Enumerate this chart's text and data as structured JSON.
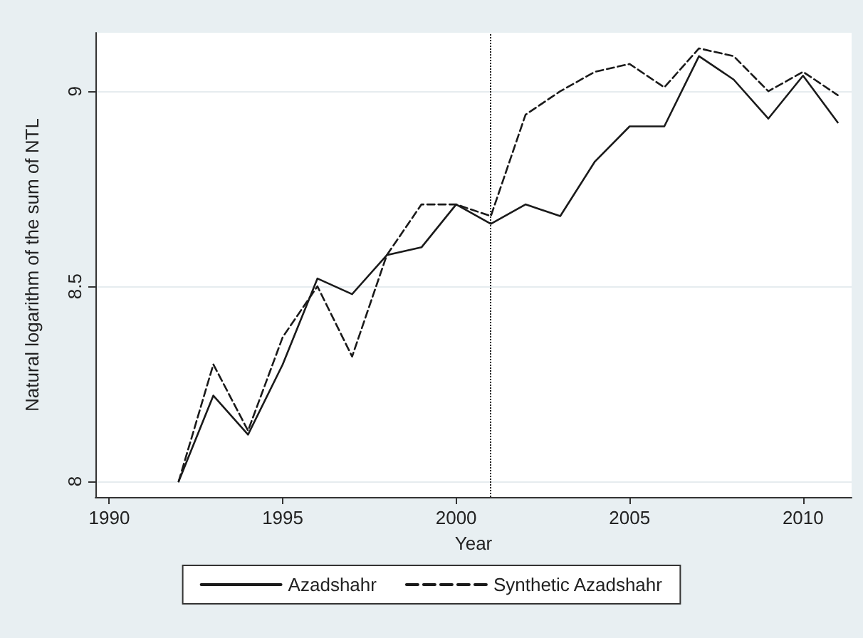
{
  "chart_data": {
    "type": "line",
    "xlabel": "Year",
    "ylabel": "Natural logarithm of the sum of NTL",
    "x": [
      1992,
      1993,
      1994,
      1995,
      1996,
      1997,
      1998,
      1999,
      2000,
      2001,
      2002,
      2003,
      2004,
      2005,
      2006,
      2007,
      2008,
      2009,
      2010,
      2011
    ],
    "series": [
      {
        "name": "Azadshahr",
        "color": "#1a1a1a",
        "line_style": "solid",
        "values": [
          8.0,
          8.22,
          8.12,
          8.3,
          8.52,
          8.48,
          8.58,
          8.6,
          8.71,
          8.66,
          8.71,
          8.68,
          8.82,
          8.91,
          8.91,
          9.09,
          9.03,
          8.93,
          9.04,
          8.92
        ]
      },
      {
        "name": "Synthetic Azadshahr",
        "color": "#1a1a1a",
        "line_style": "dashed",
        "values": [
          8.0,
          8.3,
          8.13,
          8.37,
          8.5,
          8.32,
          8.58,
          8.71,
          8.71,
          8.68,
          8.94,
          9.0,
          9.05,
          9.07,
          9.01,
          9.11,
          9.09,
          9.0,
          9.05,
          8.99
        ]
      }
    ],
    "xlim": [
      1989.6,
      2011.4
    ],
    "xticks": [
      1990,
      1995,
      2000,
      2005,
      2010
    ],
    "ylim": [
      7.96,
      9.15
    ],
    "yticks": [
      8,
      8.5,
      9
    ],
    "ref_lines": [
      {
        "axis": "x",
        "value": 2001,
        "color": "#1a1a1a",
        "line_style": "dotted"
      }
    ],
    "grid": "y",
    "legend": "bottom",
    "marker": "none"
  }
}
